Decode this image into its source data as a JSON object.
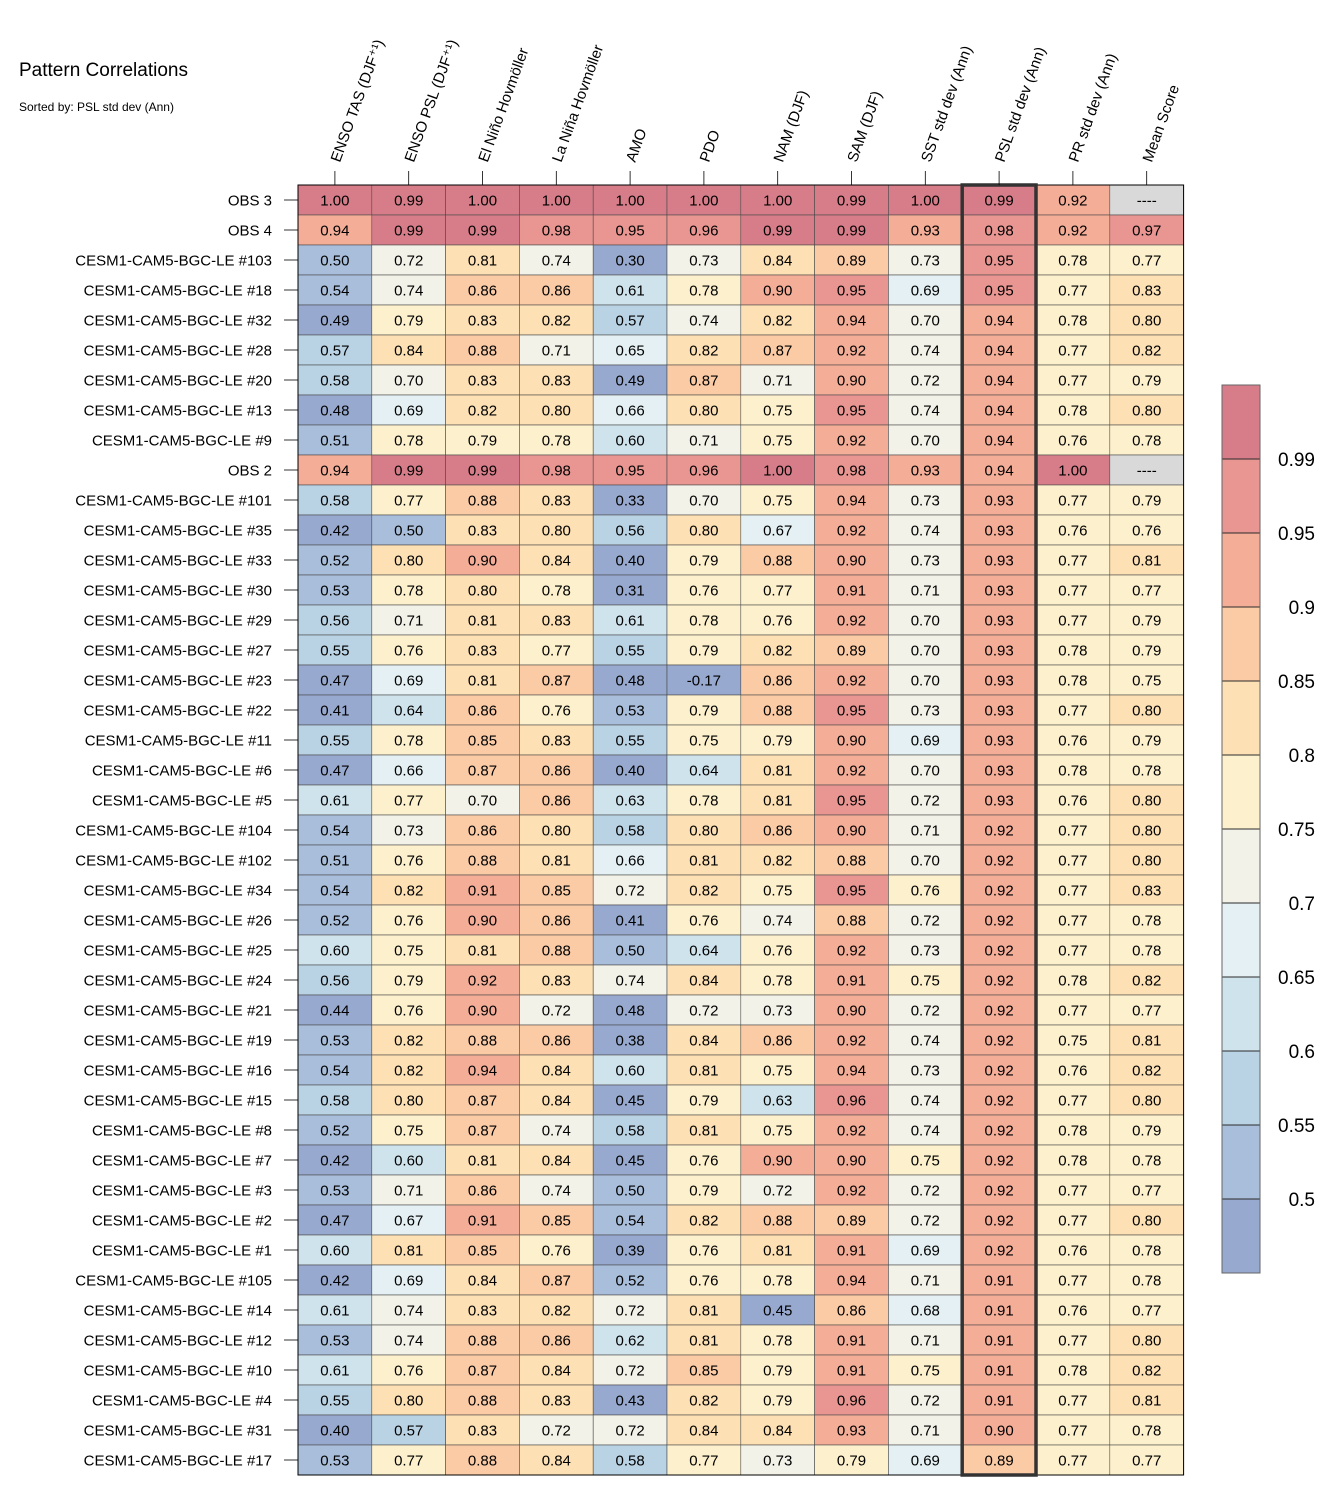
{
  "chart_data": {
    "type": "heatmap",
    "title": "Pattern Correlations",
    "subtitle": "Sorted by: PSL std dev (Ann)",
    "sorted_by": "PSL std dev (Ann)",
    "columns": [
      "ENSO TAS (DJF⁺¹)",
      "ENSO PSL (DJF⁺¹)",
      "El Niño Hovmöller",
      "La Niña Hovmöller",
      "AMO",
      "PDO",
      "NAM (DJF)",
      "SAM (DJF)",
      "SST std dev (Ann)",
      "PSL std dev (Ann)",
      "PR std dev (Ann)",
      "Mean Score"
    ],
    "rows": [
      {
        "label": "OBS 3",
        "values": [
          "1.00",
          "0.99",
          "1.00",
          "1.00",
          "1.00",
          "1.00",
          "1.00",
          "0.99",
          "1.00",
          "0.99",
          "0.92",
          "----"
        ]
      },
      {
        "label": "OBS 4",
        "values": [
          "0.94",
          "0.99",
          "0.99",
          "0.98",
          "0.95",
          "0.96",
          "0.99",
          "0.99",
          "0.93",
          "0.98",
          "0.92",
          "0.97"
        ]
      },
      {
        "label": "CESM1-CAM5-BGC-LE #103",
        "values": [
          "0.50",
          "0.72",
          "0.81",
          "0.74",
          "0.30",
          "0.73",
          "0.84",
          "0.89",
          "0.73",
          "0.95",
          "0.78",
          "0.77"
        ]
      },
      {
        "label": "CESM1-CAM5-BGC-LE #18",
        "values": [
          "0.54",
          "0.74",
          "0.86",
          "0.86",
          "0.61",
          "0.78",
          "0.90",
          "0.95",
          "0.69",
          "0.95",
          "0.77",
          "0.83"
        ]
      },
      {
        "label": "CESM1-CAM5-BGC-LE #32",
        "values": [
          "0.49",
          "0.79",
          "0.83",
          "0.82",
          "0.57",
          "0.74",
          "0.82",
          "0.94",
          "0.70",
          "0.94",
          "0.78",
          "0.80"
        ]
      },
      {
        "label": "CESM1-CAM5-BGC-LE #28",
        "values": [
          "0.57",
          "0.84",
          "0.88",
          "0.71",
          "0.65",
          "0.82",
          "0.87",
          "0.92",
          "0.74",
          "0.94",
          "0.77",
          "0.82"
        ]
      },
      {
        "label": "CESM1-CAM5-BGC-LE #20",
        "values": [
          "0.58",
          "0.70",
          "0.83",
          "0.83",
          "0.49",
          "0.87",
          "0.71",
          "0.90",
          "0.72",
          "0.94",
          "0.77",
          "0.79"
        ]
      },
      {
        "label": "CESM1-CAM5-BGC-LE #13",
        "values": [
          "0.48",
          "0.69",
          "0.82",
          "0.80",
          "0.66",
          "0.80",
          "0.75",
          "0.95",
          "0.74",
          "0.94",
          "0.78",
          "0.80"
        ]
      },
      {
        "label": "CESM1-CAM5-BGC-LE #9",
        "values": [
          "0.51",
          "0.78",
          "0.79",
          "0.78",
          "0.60",
          "0.71",
          "0.75",
          "0.92",
          "0.70",
          "0.94",
          "0.76",
          "0.78"
        ]
      },
      {
        "label": "OBS 2",
        "values": [
          "0.94",
          "0.99",
          "0.99",
          "0.98",
          "0.95",
          "0.96",
          "1.00",
          "0.98",
          "0.93",
          "0.94",
          "1.00",
          "----"
        ]
      },
      {
        "label": "CESM1-CAM5-BGC-LE #101",
        "values": [
          "0.58",
          "0.77",
          "0.88",
          "0.83",
          "0.33",
          "0.70",
          "0.75",
          "0.94",
          "0.73",
          "0.93",
          "0.77",
          "0.79"
        ]
      },
      {
        "label": "CESM1-CAM5-BGC-LE #35",
        "values": [
          "0.42",
          "0.50",
          "0.83",
          "0.80",
          "0.56",
          "0.80",
          "0.67",
          "0.92",
          "0.74",
          "0.93",
          "0.76",
          "0.76"
        ]
      },
      {
        "label": "CESM1-CAM5-BGC-LE #33",
        "values": [
          "0.52",
          "0.80",
          "0.90",
          "0.84",
          "0.40",
          "0.79",
          "0.88",
          "0.90",
          "0.73",
          "0.93",
          "0.77",
          "0.81"
        ]
      },
      {
        "label": "CESM1-CAM5-BGC-LE #30",
        "values": [
          "0.53",
          "0.78",
          "0.80",
          "0.78",
          "0.31",
          "0.76",
          "0.77",
          "0.91",
          "0.71",
          "0.93",
          "0.77",
          "0.77"
        ]
      },
      {
        "label": "CESM1-CAM5-BGC-LE #29",
        "values": [
          "0.56",
          "0.71",
          "0.81",
          "0.83",
          "0.61",
          "0.78",
          "0.76",
          "0.92",
          "0.70",
          "0.93",
          "0.77",
          "0.79"
        ]
      },
      {
        "label": "CESM1-CAM5-BGC-LE #27",
        "values": [
          "0.55",
          "0.76",
          "0.83",
          "0.77",
          "0.55",
          "0.79",
          "0.82",
          "0.89",
          "0.70",
          "0.93",
          "0.78",
          "0.79"
        ]
      },
      {
        "label": "CESM1-CAM5-BGC-LE #23",
        "values": [
          "0.47",
          "0.69",
          "0.81",
          "0.87",
          "0.48",
          "-0.17",
          "0.86",
          "0.92",
          "0.70",
          "0.93",
          "0.78",
          "0.75"
        ]
      },
      {
        "label": "CESM1-CAM5-BGC-LE #22",
        "values": [
          "0.41",
          "0.64",
          "0.86",
          "0.76",
          "0.53",
          "0.79",
          "0.88",
          "0.95",
          "0.73",
          "0.93",
          "0.77",
          "0.80"
        ]
      },
      {
        "label": "CESM1-CAM5-BGC-LE #11",
        "values": [
          "0.55",
          "0.78",
          "0.85",
          "0.83",
          "0.55",
          "0.75",
          "0.79",
          "0.90",
          "0.69",
          "0.93",
          "0.76",
          "0.79"
        ]
      },
      {
        "label": "CESM1-CAM5-BGC-LE #6",
        "values": [
          "0.47",
          "0.66",
          "0.87",
          "0.86",
          "0.40",
          "0.64",
          "0.81",
          "0.92",
          "0.70",
          "0.93",
          "0.78",
          "0.78"
        ]
      },
      {
        "label": "CESM1-CAM5-BGC-LE #5",
        "values": [
          "0.61",
          "0.77",
          "0.70",
          "0.86",
          "0.63",
          "0.78",
          "0.81",
          "0.95",
          "0.72",
          "0.93",
          "0.76",
          "0.80"
        ]
      },
      {
        "label": "CESM1-CAM5-BGC-LE #104",
        "values": [
          "0.54",
          "0.73",
          "0.86",
          "0.80",
          "0.58",
          "0.80",
          "0.86",
          "0.90",
          "0.71",
          "0.92",
          "0.77",
          "0.80"
        ]
      },
      {
        "label": "CESM1-CAM5-BGC-LE #102",
        "values": [
          "0.51",
          "0.76",
          "0.88",
          "0.81",
          "0.66",
          "0.81",
          "0.82",
          "0.88",
          "0.70",
          "0.92",
          "0.77",
          "0.80"
        ]
      },
      {
        "label": "CESM1-CAM5-BGC-LE #34",
        "values": [
          "0.54",
          "0.82",
          "0.91",
          "0.85",
          "0.72",
          "0.82",
          "0.75",
          "0.95",
          "0.76",
          "0.92",
          "0.77",
          "0.83"
        ]
      },
      {
        "label": "CESM1-CAM5-BGC-LE #26",
        "values": [
          "0.52",
          "0.76",
          "0.90",
          "0.86",
          "0.41",
          "0.76",
          "0.74",
          "0.88",
          "0.72",
          "0.92",
          "0.77",
          "0.78"
        ]
      },
      {
        "label": "CESM1-CAM5-BGC-LE #25",
        "values": [
          "0.60",
          "0.75",
          "0.81",
          "0.88",
          "0.50",
          "0.64",
          "0.76",
          "0.92",
          "0.73",
          "0.92",
          "0.77",
          "0.78"
        ]
      },
      {
        "label": "CESM1-CAM5-BGC-LE #24",
        "values": [
          "0.56",
          "0.79",
          "0.92",
          "0.83",
          "0.74",
          "0.84",
          "0.78",
          "0.91",
          "0.75",
          "0.92",
          "0.78",
          "0.82"
        ]
      },
      {
        "label": "CESM1-CAM5-BGC-LE #21",
        "values": [
          "0.44",
          "0.76",
          "0.90",
          "0.72",
          "0.48",
          "0.72",
          "0.73",
          "0.90",
          "0.72",
          "0.92",
          "0.77",
          "0.77"
        ]
      },
      {
        "label": "CESM1-CAM5-BGC-LE #19",
        "values": [
          "0.53",
          "0.82",
          "0.88",
          "0.86",
          "0.38",
          "0.84",
          "0.86",
          "0.92",
          "0.74",
          "0.92",
          "0.75",
          "0.81"
        ]
      },
      {
        "label": "CESM1-CAM5-BGC-LE #16",
        "values": [
          "0.54",
          "0.82",
          "0.94",
          "0.84",
          "0.60",
          "0.81",
          "0.75",
          "0.94",
          "0.73",
          "0.92",
          "0.76",
          "0.82"
        ]
      },
      {
        "label": "CESM1-CAM5-BGC-LE #15",
        "values": [
          "0.58",
          "0.80",
          "0.87",
          "0.84",
          "0.45",
          "0.79",
          "0.63",
          "0.96",
          "0.74",
          "0.92",
          "0.77",
          "0.80"
        ]
      },
      {
        "label": "CESM1-CAM5-BGC-LE #8",
        "values": [
          "0.52",
          "0.75",
          "0.87",
          "0.74",
          "0.58",
          "0.81",
          "0.75",
          "0.92",
          "0.74",
          "0.92",
          "0.78",
          "0.79"
        ]
      },
      {
        "label": "CESM1-CAM5-BGC-LE #7",
        "values": [
          "0.42",
          "0.60",
          "0.81",
          "0.84",
          "0.45",
          "0.76",
          "0.90",
          "0.90",
          "0.75",
          "0.92",
          "0.78",
          "0.78"
        ]
      },
      {
        "label": "CESM1-CAM5-BGC-LE #3",
        "values": [
          "0.53",
          "0.71",
          "0.86",
          "0.74",
          "0.50",
          "0.79",
          "0.72",
          "0.92",
          "0.72",
          "0.92",
          "0.77",
          "0.77"
        ]
      },
      {
        "label": "CESM1-CAM5-BGC-LE #2",
        "values": [
          "0.47",
          "0.67",
          "0.91",
          "0.85",
          "0.54",
          "0.82",
          "0.88",
          "0.89",
          "0.72",
          "0.92",
          "0.77",
          "0.80"
        ]
      },
      {
        "label": "CESM1-CAM5-BGC-LE #1",
        "values": [
          "0.60",
          "0.81",
          "0.85",
          "0.76",
          "0.39",
          "0.76",
          "0.81",
          "0.91",
          "0.69",
          "0.92",
          "0.76",
          "0.78"
        ]
      },
      {
        "label": "CESM1-CAM5-BGC-LE #105",
        "values": [
          "0.42",
          "0.69",
          "0.84",
          "0.87",
          "0.52",
          "0.76",
          "0.78",
          "0.94",
          "0.71",
          "0.91",
          "0.77",
          "0.78"
        ]
      },
      {
        "label": "CESM1-CAM5-BGC-LE #14",
        "values": [
          "0.61",
          "0.74",
          "0.83",
          "0.82",
          "0.72",
          "0.81",
          "0.45",
          "0.86",
          "0.68",
          "0.91",
          "0.76",
          "0.77"
        ]
      },
      {
        "label": "CESM1-CAM5-BGC-LE #12",
        "values": [
          "0.53",
          "0.74",
          "0.88",
          "0.86",
          "0.62",
          "0.81",
          "0.78",
          "0.91",
          "0.71",
          "0.91",
          "0.77",
          "0.80"
        ]
      },
      {
        "label": "CESM1-CAM5-BGC-LE #10",
        "values": [
          "0.61",
          "0.76",
          "0.87",
          "0.84",
          "0.72",
          "0.85",
          "0.79",
          "0.91",
          "0.75",
          "0.91",
          "0.78",
          "0.82"
        ]
      },
      {
        "label": "CESM1-CAM5-BGC-LE #4",
        "values": [
          "0.55",
          "0.80",
          "0.88",
          "0.83",
          "0.43",
          "0.82",
          "0.79",
          "0.96",
          "0.72",
          "0.91",
          "0.77",
          "0.81"
        ]
      },
      {
        "label": "CESM1-CAM5-BGC-LE #31",
        "values": [
          "0.40",
          "0.57",
          "0.83",
          "0.72",
          "0.72",
          "0.84",
          "0.84",
          "0.93",
          "0.71",
          "0.90",
          "0.77",
          "0.78"
        ]
      },
      {
        "label": "CESM1-CAM5-BGC-LE #17",
        "values": [
          "0.53",
          "0.77",
          "0.88",
          "0.84",
          "0.58",
          "0.77",
          "0.73",
          "0.79",
          "0.69",
          "0.89",
          "0.77",
          "0.77"
        ]
      }
    ],
    "colorbar": {
      "tick_labels": [
        "0.99",
        "0.95",
        "0.9",
        "0.85",
        "0.8",
        "0.75",
        "0.7",
        "0.65",
        "0.6",
        "0.55",
        "0.5"
      ],
      "boundaries": [
        0.5,
        0.55,
        0.6,
        0.65,
        0.7,
        0.75,
        0.8,
        0.85,
        0.9,
        0.95,
        0.99
      ],
      "colors": [
        "#98a9cf",
        "#a8bedb",
        "#bad3e4",
        "#cfe3ec",
        "#e4f0f3",
        "#f3f2e8",
        "#fdf0cc",
        "#fde0b3",
        "#fbcba5",
        "#f4ad97",
        "#e99692",
        "#d67d89"
      ],
      "missing_color": "#d9d9d9"
    },
    "highlighted_column": "PSL std dev (Ann)"
  }
}
